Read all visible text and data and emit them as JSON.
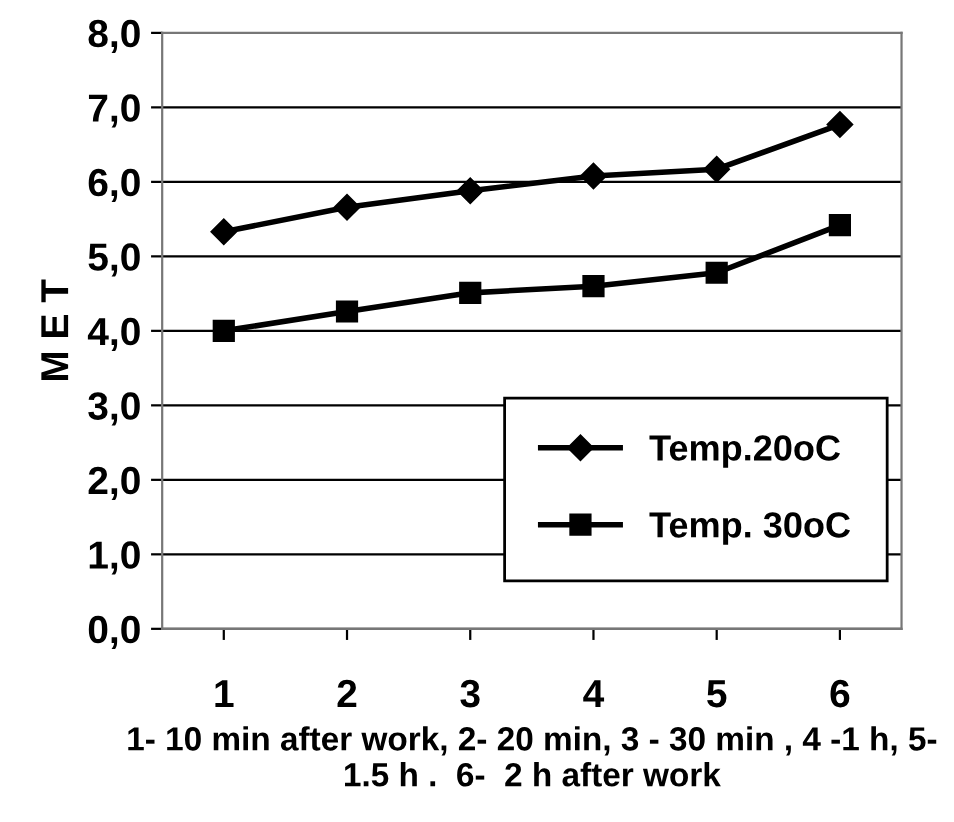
{
  "chart_data": {
    "type": "line",
    "xlabel": "1- 10 min after work, 2- 20 min, 3 - 30 min , 4 -1 h, 5- 1.5 h .  6-  2 h after work",
    "ylabel": "M E T",
    "categories": [
      "1",
      "2",
      "3",
      "4",
      "5",
      "6"
    ],
    "series": [
      {
        "name": "Temp.20oC",
        "color": "#000000",
        "marker": "diamond",
        "values": [
          5.33,
          5.66,
          5.88,
          6.08,
          6.17,
          6.77
        ]
      },
      {
        "name": "Temp. 30oC",
        "color": "#000000",
        "marker": "square",
        "values": [
          4.0,
          4.26,
          4.51,
          4.6,
          4.78,
          5.42
        ]
      }
    ],
    "ylim": [
      0,
      8
    ],
    "yticks": [
      {
        "value": 0,
        "label": "0,0"
      },
      {
        "value": 1,
        "label": "1,0"
      },
      {
        "value": 2,
        "label": "2,0"
      },
      {
        "value": 3,
        "label": "3,0"
      },
      {
        "value": 4,
        "label": "4,0"
      },
      {
        "value": 5,
        "label": "5,0"
      },
      {
        "value": 6,
        "label": "6,0"
      },
      {
        "value": 7,
        "label": "7,0"
      },
      {
        "value": 8,
        "label": "8,0"
      }
    ],
    "grid": "y",
    "legend": "bottom right",
    "line_style": "solid"
  }
}
